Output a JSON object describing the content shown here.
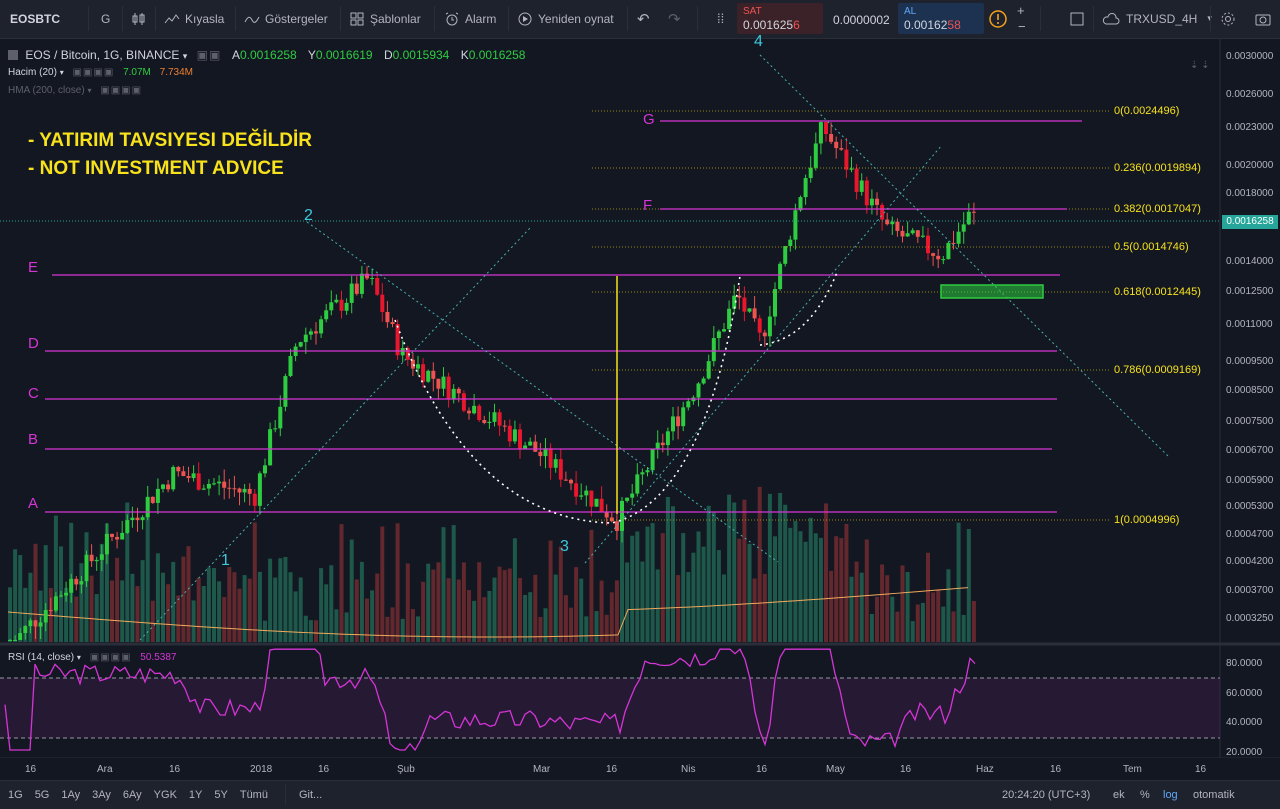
{
  "toolbar": {
    "symbol": "EOSBTC",
    "interval": "G",
    "compare": "Kıyasla",
    "indicators": "Göstergeler",
    "templates": "Şablonlar",
    "alert": "Alarm",
    "replay": "Yeniden oynat",
    "sell_label": "SAT",
    "sell_price_main": "0.001625",
    "sell_price_tail": "6",
    "spread": "0.0000002",
    "buy_label": "AL",
    "buy_price_main": "0.00162",
    "buy_price_tail": "58",
    "watch_symbol": "TRXUSD_4H"
  },
  "legend": {
    "title": "EOS / Bitcoin, 1G, BINANCE",
    "o_label": "A",
    "o_value": "0.0016258",
    "h_label": "Y",
    "h_value": "0.0016619",
    "l_label": "D",
    "l_value": "0.0015934",
    "c_label": "K",
    "c_value": "0.0016258",
    "volume_label": "Hacim (20)",
    "volume_v1": "7.07M",
    "volume_v2": "7.734M",
    "hma_label": "HMA (200, close)",
    "rsi_label": "RSI (14, close)",
    "rsi_value": "50.5387"
  },
  "annotations": {
    "warn1": "- YATIRIM TAVSIYESI DEĞİLDİR",
    "warn2": "- NOT INVESTMENT ADVICE",
    "waves": [
      "1",
      "2",
      "3",
      "4"
    ],
    "levels": [
      "A",
      "B",
      "C",
      "D",
      "E",
      "F",
      "G"
    ],
    "fib": [
      {
        "label": "0(0.0024496)",
        "ratio": 0
      },
      {
        "label": "0.236(0.0019894)",
        "ratio": 0.236
      },
      {
        "label": "0.382(0.0017047)",
        "ratio": 0.382
      },
      {
        "label": "0.5(0.0014746)",
        "ratio": 0.5
      },
      {
        "label": "0.618(0.0012445)",
        "ratio": 0.618
      },
      {
        "label": "0.786(0.0009169)",
        "ratio": 0.786
      },
      {
        "label": "1(0.0004996)",
        "ratio": 1
      }
    ]
  },
  "price_axis": [
    "0.0030000",
    "0.0026000",
    "0.0023000",
    "0.0020000",
    "0.0018000",
    "0.0016258",
    "0.0014000",
    "0.0012500",
    "0.0011000",
    "0.0009500",
    "0.0008500",
    "0.0007500",
    "0.0006700",
    "0.0005900",
    "0.0005300",
    "0.0004700",
    "0.0004200",
    "0.0003700",
    "0.0003250"
  ],
  "current_price": "0.0016258",
  "rsi_axis": [
    "80.0000",
    "60.0000",
    "40.0000",
    "20.0000"
  ],
  "time_axis": [
    "16",
    "Ara",
    "16",
    "2018",
    "16",
    "Şub",
    "Mar",
    "16",
    "Nis",
    "16",
    "May",
    "16",
    "Haz",
    "16",
    "Tem",
    "16"
  ],
  "bottom": {
    "ranges": [
      "1G",
      "5G",
      "1Ay",
      "3Ay",
      "6Ay",
      "YGK",
      "1Y",
      "5Y",
      "Tümü"
    ],
    "goto": "Git...",
    "clock": "20:24:20 (UTC+3)",
    "ext": "ek",
    "pct": "%",
    "log": "log",
    "auto": "otomatik"
  },
  "colors": {
    "up": "#26a69a",
    "upbright": "#2ecc40",
    "down": "#ef5350",
    "downbright": "#e8172d",
    "fib": "#f7e21b",
    "level": "#d535d5",
    "wave": "#3ec8dc",
    "rsi": "#d535d5"
  },
  "chart_data": {
    "type": "candlestick",
    "title": "EOS / Bitcoin, 1G, BINANCE",
    "scale": "log",
    "ylim": [
      0.0003,
      0.0031
    ],
    "last": {
      "open": 0.0016258,
      "high": 0.0016619,
      "low": 0.0015934,
      "close": 0.0016258
    },
    "approx_path": [
      {
        "x": "Nov",
        "close": 0.0003
      },
      {
        "x": "Ara 16",
        "close": 0.0006
      },
      {
        "x": "2018",
        "close": 0.00055
      },
      {
        "x": "Jan 16",
        "close": 0.001
      },
      {
        "x": "Jan 24",
        "close": 0.00128
      },
      {
        "x": "Şub",
        "close": 0.00095
      },
      {
        "x": "Mar",
        "close": 0.00065
      },
      {
        "x": "Mar 16",
        "close": 0.0005
      },
      {
        "x": "Nis",
        "close": 0.00085
      },
      {
        "x": "Nis 12",
        "close": 0.0012
      },
      {
        "x": "Nis 16",
        "close": 0.001
      },
      {
        "x": "Nis 24",
        "close": 0.00185
      },
      {
        "x": "May",
        "close": 0.0023
      },
      {
        "x": "May 16",
        "close": 0.00155
      },
      {
        "x": "May 24",
        "close": 0.0014
      },
      {
        "x": "May 29",
        "close": 0.0016258
      }
    ],
    "rsi_last": 50.5387
  }
}
